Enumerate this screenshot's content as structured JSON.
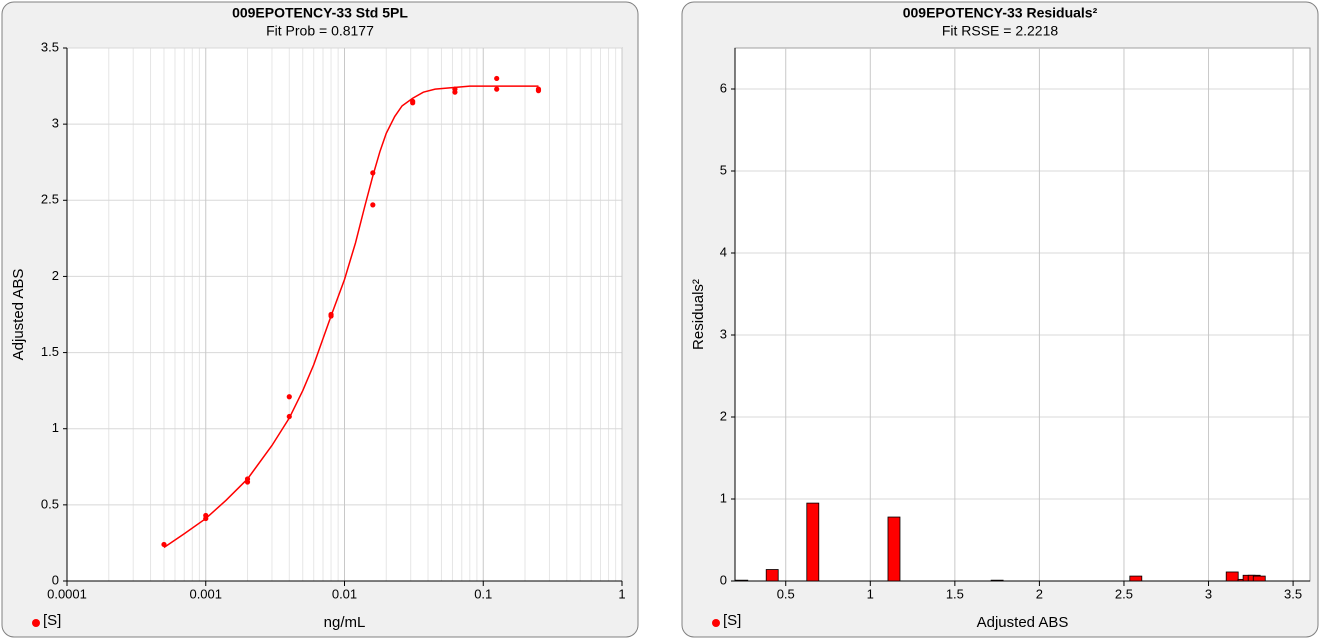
{
  "chart_data": [
    {
      "type": "scatter",
      "title": "009EPOTENCY-33 Std 5PL",
      "subtitle": "Fit Prob = 0.8177",
      "x_label": "ng/mL",
      "y_label": "Adjusted ABS",
      "xscale": "log",
      "xlim": [
        0.0001,
        1
      ],
      "xticks": [
        0.0001,
        0.001,
        0.01,
        0.1,
        1
      ],
      "ylim": [
        0,
        3.5
      ],
      "yticks": [
        0,
        0.5,
        1,
        1.5,
        2,
        2.5,
        3,
        3.5
      ],
      "grid": true,
      "minor_grid": true,
      "legend": "bottom-left",
      "series": [
        {
          "name": "[S]",
          "color": "#ff0000",
          "x": [
            0.0005,
            0.001,
            0.001,
            0.002,
            0.002,
            0.004,
            0.004,
            0.008,
            0.008,
            0.016,
            0.016,
            0.031,
            0.031,
            0.0625,
            0.0625,
            0.125,
            0.125,
            0.25,
            0.25
          ],
          "values": [
            0.24,
            0.41,
            0.43,
            0.65,
            0.67,
            1.21,
            1.08,
            1.74,
            1.75,
            2.68,
            2.47,
            3.14,
            3.15,
            3.21,
            3.23,
            3.3,
            3.23,
            3.23,
            3.22
          ]
        },
        {
          "color": "#ff0000",
          "line": true,
          "x": [
            0.0005,
            0.0007,
            0.001,
            0.0014,
            0.002,
            0.003,
            0.004,
            0.005,
            0.006,
            0.008,
            0.01,
            0.012,
            0.014,
            0.016,
            0.018,
            0.02,
            0.023,
            0.026,
            0.031,
            0.037,
            0.045,
            0.06,
            0.08,
            0.125,
            0.25
          ],
          "values": [
            0.22,
            0.31,
            0.41,
            0.53,
            0.67,
            0.89,
            1.07,
            1.25,
            1.42,
            1.74,
            1.98,
            2.22,
            2.46,
            2.66,
            2.82,
            2.94,
            3.05,
            3.12,
            3.17,
            3.21,
            3.23,
            3.24,
            3.25,
            3.25,
            3.25
          ]
        }
      ]
    },
    {
      "type": "bar",
      "title": "009EPOTENCY-33 Residuals²",
      "subtitle": "Fit RSSE = 2.2218",
      "x_label": "Adjusted ABS",
      "y_label": "Residuals²",
      "xlim": [
        0.2,
        3.6
      ],
      "xticks": [
        0.5,
        1,
        1.5,
        2,
        2.5,
        3,
        3.5
      ],
      "ylim": [
        0,
        6.5
      ],
      "yticks": [
        0,
        1,
        2,
        3,
        4,
        5,
        6
      ],
      "grid": true,
      "legend": "bottom-left",
      "series": [
        {
          "name": "[S]",
          "color": "#ff0000",
          "x": [
            0.24,
            0.42,
            0.66,
            1.14,
            1.75,
            2.57,
            3.14,
            3.21,
            3.24,
            3.27,
            3.3
          ],
          "values": [
            0.01,
            0.14,
            0.95,
            0.78,
            0.01,
            0.06,
            0.11,
            0.02,
            0.07,
            0.07,
            0.06
          ]
        }
      ]
    }
  ]
}
